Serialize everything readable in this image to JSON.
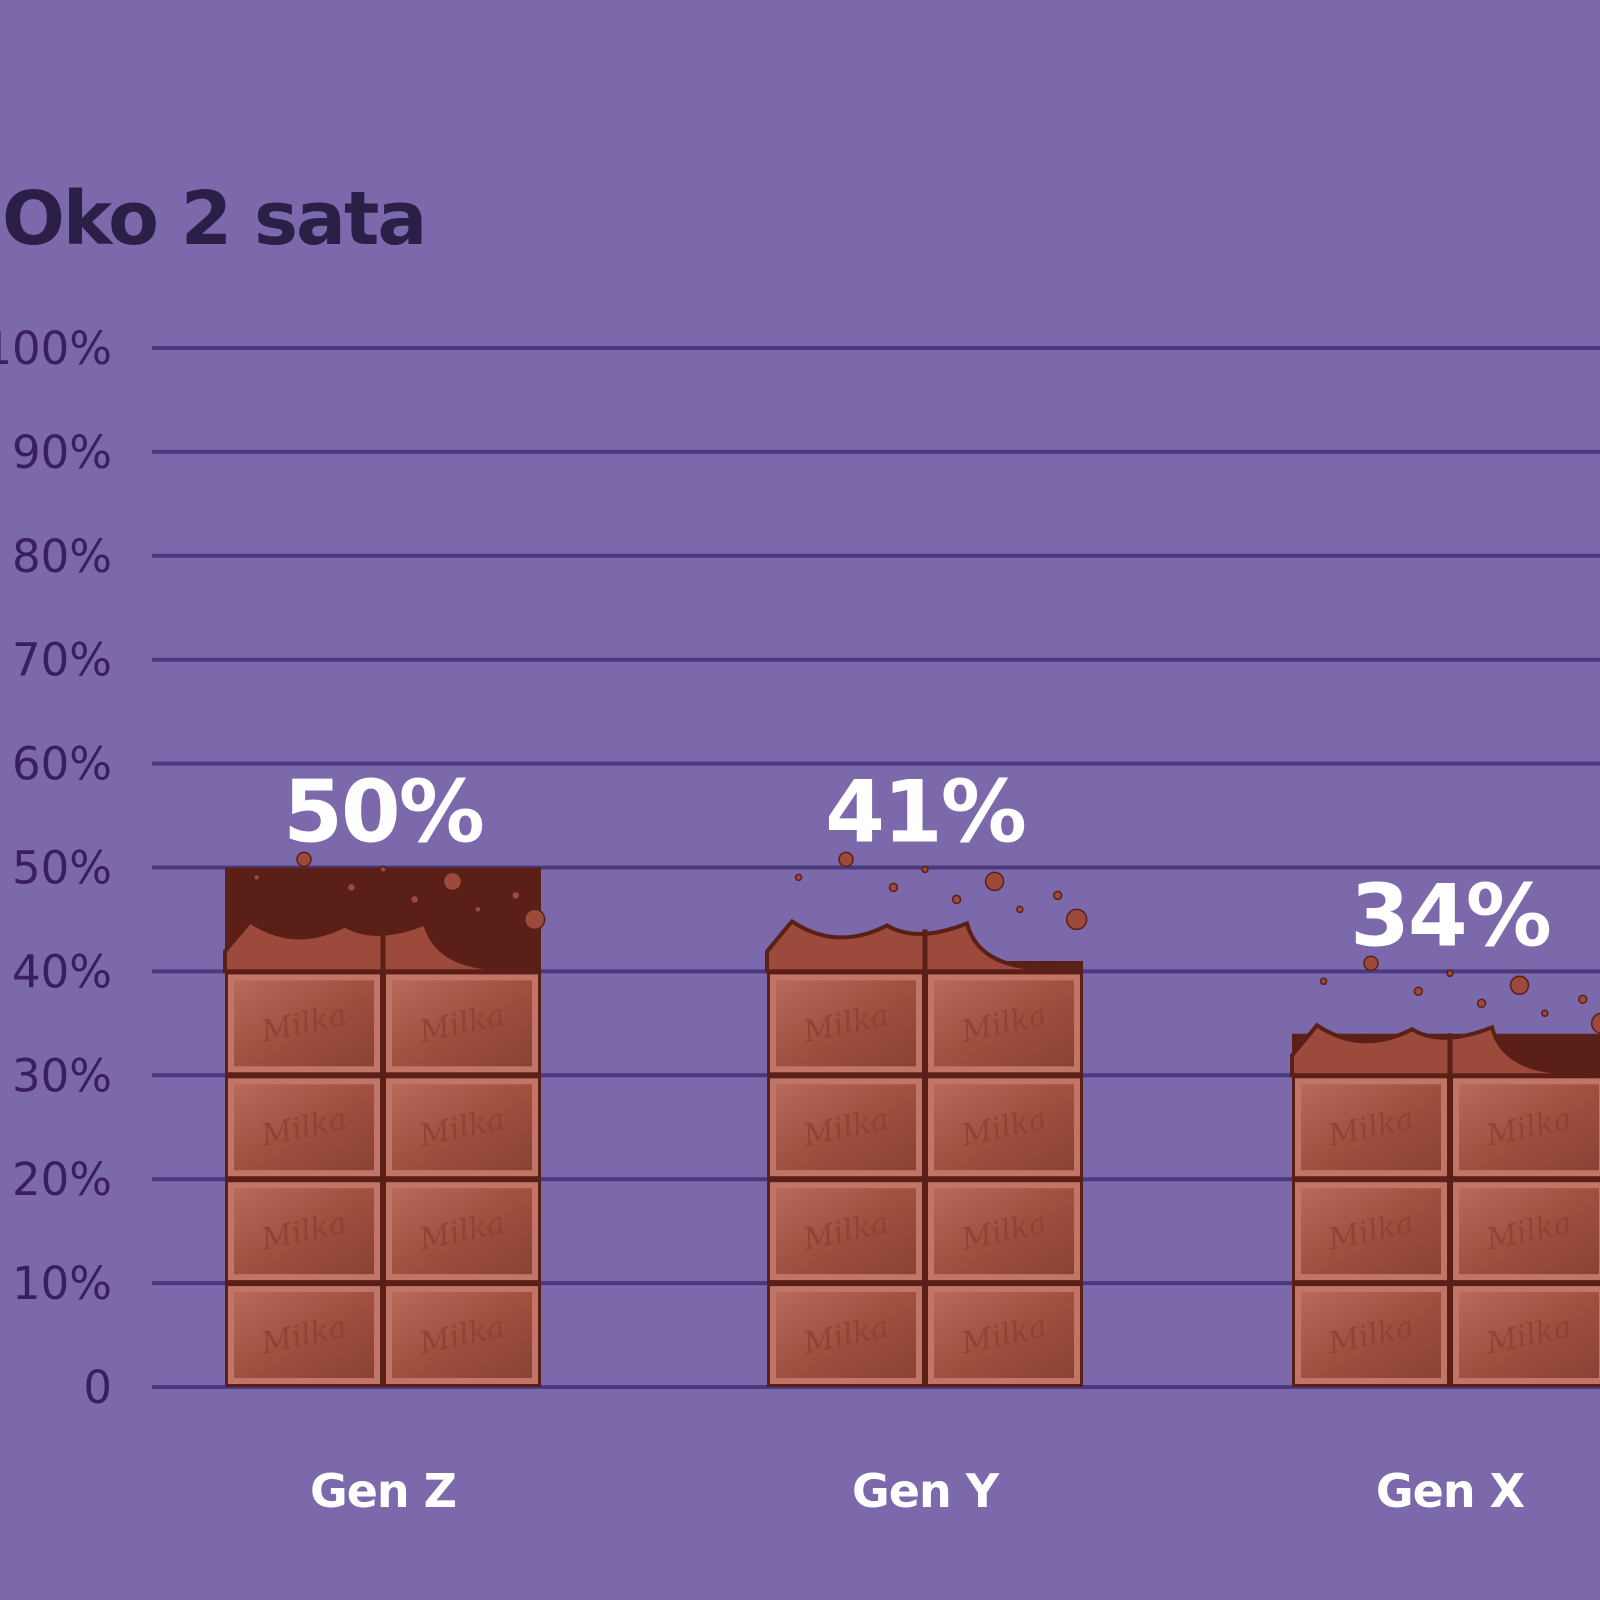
{
  "chart_data": {
    "type": "bar",
    "title": "Oko 2 sata",
    "categories": [
      "Gen Z",
      "Gen Y",
      "Gen X"
    ],
    "values": [
      50,
      41,
      34
    ],
    "value_labels": [
      "50%",
      "41%",
      "34%"
    ],
    "ylim": [
      0,
      100
    ],
    "yticks": [
      0,
      10,
      20,
      30,
      40,
      50,
      60,
      70,
      80,
      90,
      100
    ],
    "ytick_labels": [
      "0",
      "10%",
      "20%",
      "30%",
      "40%",
      "50%",
      "60%",
      "70%",
      "80%",
      "90%",
      "100%"
    ],
    "bar_brand_text": "Milka",
    "grid": true,
    "colors": {
      "background": "#7b69ac",
      "title": "#2b1f47",
      "gridline": "#4a3a7d",
      "tick_text": "#3a1f5e",
      "chocolate": "#9c4a3c",
      "chocolate_dark": "#5a1f16",
      "chocolate_light": "#c07566",
      "label_text": "#ffffff"
    }
  }
}
